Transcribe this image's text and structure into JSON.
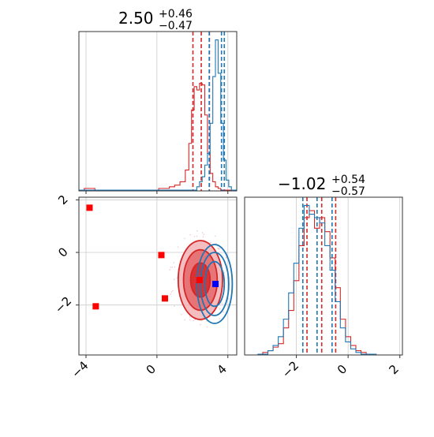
{
  "chart_data": [
    {
      "type": "histogram",
      "panel": "top-left",
      "title": {
        "value": "2.50",
        "upper": "+0.46",
        "lower": "−0.47"
      },
      "xlim": [
        -4.4,
        4.5
      ],
      "x_ticks": [
        -4,
        0,
        4
      ],
      "grid": true,
      "bins": [
        -4.4,
        -4.1,
        -3.8,
        -3.5,
        -3.2,
        -2.9,
        -2.6,
        -2.3,
        -2.0,
        -1.7,
        -1.4,
        -1.1,
        -0.8,
        -0.5,
        -0.2,
        0.1,
        0.4,
        0.7,
        1.0,
        1.3,
        1.6,
        1.8,
        1.95,
        2.1,
        2.25,
        2.4,
        2.55,
        2.7,
        2.85,
        3.0,
        3.15,
        3.3,
        3.45,
        3.6,
        3.75,
        3.9,
        4.05,
        4.2,
        4.35,
        4.5
      ],
      "series": [
        {
          "color": "#d62728",
          "counts": [
            0,
            0.01,
            0.01,
            0,
            0,
            0,
            0,
            0,
            0,
            0,
            0,
            0,
            0,
            0,
            0,
            0.01,
            0.01,
            0.02,
            0.03,
            0.05,
            0.12,
            0.28,
            0.48,
            0.62,
            0.6,
            0.64,
            0.63,
            0.45,
            0.22,
            0.1,
            0.05,
            0.02,
            0.01,
            0,
            0,
            0,
            0,
            0,
            0
          ],
          "vlines": [
            2.03,
            2.96,
            2.5
          ]
        },
        {
          "color": "#1f77b4",
          "counts": [
            0,
            0,
            0,
            0,
            0,
            0,
            0,
            0,
            0,
            0,
            0,
            0,
            0,
            0,
            0,
            0,
            0,
            0,
            0,
            0,
            0,
            0,
            0,
            0,
            0.02,
            0.05,
            0.08,
            0.15,
            0.22,
            0.4,
            0.68,
            0.9,
            0.7,
            0.4,
            0.18,
            0.06,
            0.02,
            0,
            0
          ],
          "vlines": [
            2.95,
            3.64,
            3.8
          ]
        }
      ]
    },
    {
      "type": "contour-scatter",
      "panel": "bottom-left",
      "xlim": [
        -4.4,
        4.5
      ],
      "ylim": [
        -3.9,
        2.1
      ],
      "x_ticks": [
        -4,
        0,
        4
      ],
      "y_ticks": [
        -2,
        0,
        2
      ],
      "grid": true,
      "markers": [
        {
          "x": -3.8,
          "y": 1.7,
          "color": "#ff0000"
        },
        {
          "x": 0.25,
          "y": -0.1,
          "color": "#ff0000"
        },
        {
          "x": -3.45,
          "y": -2.05,
          "color": "#ff0000"
        },
        {
          "x": 0.45,
          "y": -1.75,
          "color": "#ff0000"
        },
        {
          "x": 2.4,
          "y": -1.05,
          "color": "#ff0000"
        },
        {
          "x": 3.3,
          "y": -1.2,
          "color": "#0000ff"
        }
      ],
      "contours": [
        {
          "color": "#d62728",
          "center": [
            2.45,
            -1.05
          ],
          "levels_rx": [
            0.55,
            0.95,
            1.25
          ],
          "levels_ry": [
            0.65,
            1.15,
            1.5
          ],
          "filled": true
        },
        {
          "color": "#1f77b4",
          "center": [
            3.25,
            -1.2
          ],
          "levels_rx": [
            0.55,
            0.8,
            1.0
          ],
          "levels_ry": [
            0.85,
            1.2,
            1.5
          ],
          "filled": false
        }
      ]
    },
    {
      "type": "histogram",
      "panel": "bottom-right",
      "title": {
        "value": "−1.02",
        "upper": "+0.54",
        "lower": "−0.57"
      },
      "xlim": [
        -4.0,
        2.1
      ],
      "x_ticks": [
        -2,
        0,
        2
      ],
      "grid": true,
      "bins": [
        -3.5,
        -3.3,
        -3.1,
        -2.9,
        -2.7,
        -2.5,
        -2.3,
        -2.1,
        -1.9,
        -1.7,
        -1.5,
        -1.3,
        -1.1,
        -0.9,
        -0.7,
        -0.5,
        -0.3,
        -0.1,
        0.1,
        0.3,
        0.5,
        0.7,
        0.9,
        1.1
      ],
      "series": [
        {
          "color": "#d62728",
          "counts": [
            0,
            0.01,
            0.02,
            0.04,
            0.06,
            0.15,
            0.25,
            0.42,
            0.62,
            0.78,
            0.82,
            0.72,
            0.78,
            0.7,
            0.55,
            0.38,
            0.2,
            0.1,
            0.05,
            0.02,
            0.01,
            0,
            0
          ],
          "vlines": [
            -1.59,
            -0.48,
            -1.02
          ]
        },
        {
          "color": "#1f77b4",
          "counts": [
            0,
            0,
            0.02,
            0.05,
            0.1,
            0.2,
            0.35,
            0.52,
            0.72,
            0.85,
            0.8,
            0.78,
            0.75,
            0.62,
            0.48,
            0.3,
            0.15,
            0.07,
            0.03,
            0.01,
            0,
            0,
            0
          ],
          "vlines": [
            -1.75,
            -0.62,
            -1.2
          ]
        }
      ]
    }
  ]
}
